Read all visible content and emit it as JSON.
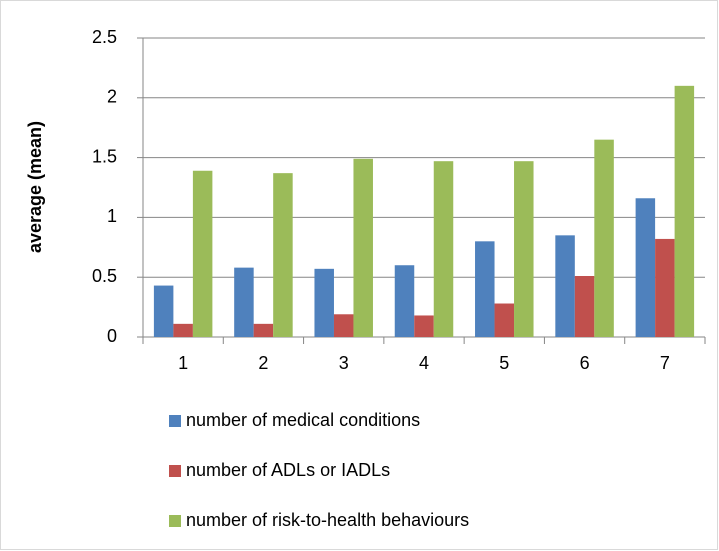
{
  "chart_data": {
    "type": "bar",
    "y_label": "average (mean)",
    "categories": [
      "1",
      "2",
      "3",
      "4",
      "5",
      "6",
      "7"
    ],
    "series": [
      {
        "name": "number of medical conditions",
        "color": "#4f81bd",
        "values": [
          0.43,
          0.58,
          0.57,
          0.6,
          0.8,
          0.85,
          1.16
        ]
      },
      {
        "name": "number of ADLs or IADLs",
        "color": "#c0504d",
        "values": [
          0.11,
          0.11,
          0.19,
          0.18,
          0.28,
          0.51,
          0.82
        ]
      },
      {
        "name": "number of risk-to-health behaviours",
        "color": "#9bbb59",
        "values": [
          1.39,
          1.37,
          1.49,
          1.47,
          1.47,
          1.65,
          2.1
        ]
      }
    ],
    "ylim": [
      0,
      2.5
    ],
    "yticks": [
      0,
      0.5,
      1,
      1.5,
      2,
      2.5
    ],
    "grid": true
  }
}
